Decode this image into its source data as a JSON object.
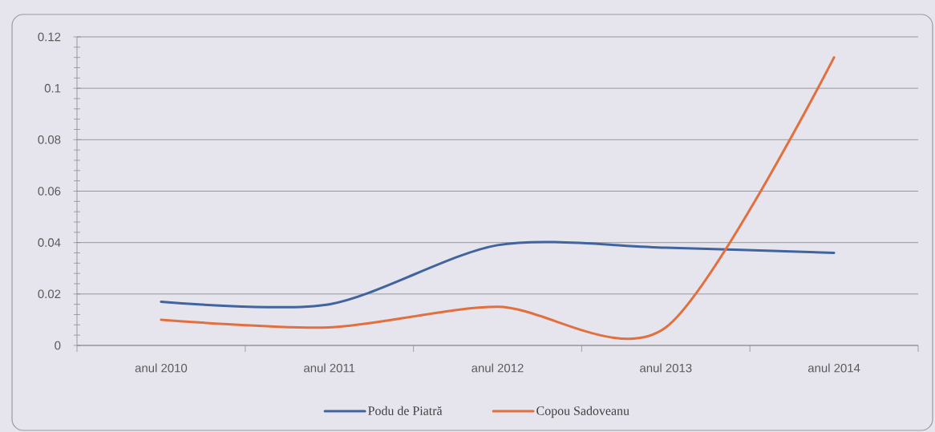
{
  "chart_data": {
    "type": "line",
    "categories": [
      "anul 2010",
      "anul 2011",
      "anul 2012",
      "anul 2013",
      "anul 2014"
    ],
    "series": [
      {
        "name": "Podu de Piatră",
        "color": "#41649f",
        "values": [
          0.017,
          0.016,
          0.039,
          0.038,
          0.036
        ]
      },
      {
        "name": "Copou Sadoveanu",
        "color": "#e2703f",
        "values": [
          0.01,
          0.007,
          0.015,
          0.007,
          0.112
        ]
      }
    ],
    "ylim": [
      0,
      0.12
    ],
    "yticks": [
      0,
      0.02,
      0.04,
      0.06,
      0.08,
      0.1,
      0.12
    ],
    "grid": "y",
    "legend": "bottom"
  }
}
